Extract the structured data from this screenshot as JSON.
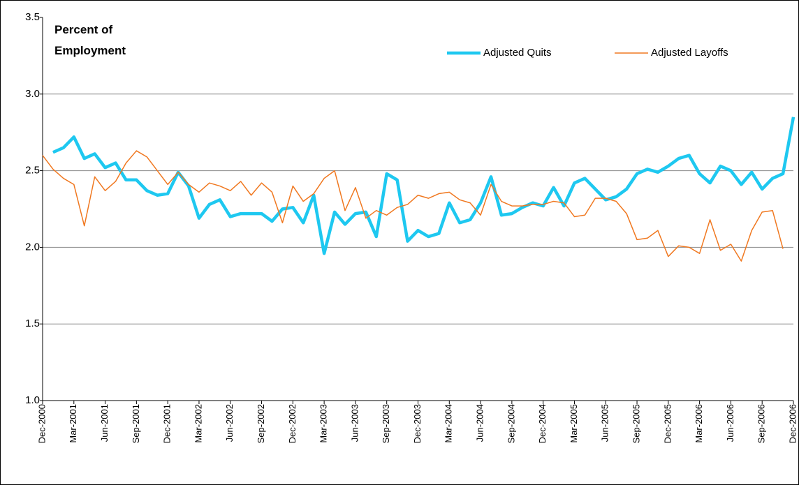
{
  "chart_data": {
    "type": "line",
    "annotation": [
      "Percent of",
      "Employment"
    ],
    "categories": [
      "Dec-2000",
      null,
      null,
      "Mar-2001",
      null,
      null,
      "Jun-2001",
      null,
      null,
      "Sep-2001",
      null,
      null,
      "Dec-2001",
      null,
      null,
      "Mar-2002",
      null,
      null,
      "Jun-2002",
      null,
      null,
      "Sep-2002",
      null,
      null,
      "Dec-2002",
      null,
      null,
      "Mar-2003",
      null,
      null,
      "Jun-2003",
      null,
      null,
      "Sep-2003",
      null,
      null,
      "Dec-2003",
      null,
      null,
      "Mar-2004",
      null,
      null,
      "Jun-2004",
      null,
      null,
      "Sep-2004",
      null,
      null,
      "Dec-2004",
      null,
      null,
      "Mar-2005",
      null,
      null,
      "Jun-2005",
      null,
      null,
      "Sep-2005",
      null,
      null,
      "Dec-2005",
      null,
      null,
      "Mar-2006",
      null,
      null,
      "Jun-2006",
      null,
      null,
      "Sep-2006",
      null,
      null,
      "Dec-2006"
    ],
    "series": [
      {
        "name": "Adjusted Quits",
        "color": "#1ec8f0",
        "width": 4.5,
        "values": [
          null,
          2.62,
          2.65,
          2.72,
          2.58,
          2.61,
          2.52,
          2.55,
          2.44,
          2.44,
          2.37,
          2.34,
          2.35,
          2.49,
          2.4,
          2.19,
          2.28,
          2.31,
          2.2,
          2.22,
          2.22,
          2.22,
          2.17,
          2.25,
          2.26,
          2.16,
          2.34,
          1.96,
          2.23,
          2.15,
          2.22,
          2.23,
          2.07,
          2.48,
          2.44,
          2.04,
          2.11,
          2.07,
          2.09,
          2.29,
          2.16,
          2.18,
          2.29,
          2.46,
          2.21,
          2.22,
          2.26,
          2.29,
          2.27,
          2.39,
          2.27,
          2.42,
          2.45,
          2.38,
          2.31,
          2.33,
          2.38,
          2.48,
          2.51,
          2.49,
          2.53,
          2.58,
          2.6,
          2.48,
          2.42,
          2.53,
          2.5,
          2.41,
          2.49,
          2.38,
          2.45,
          2.48,
          2.85
        ]
      },
      {
        "name": "Adjusted Layoffs",
        "color": "#f07820",
        "width": 1.5,
        "values": [
          2.6,
          2.51,
          2.45,
          2.41,
          2.14,
          2.46,
          2.37,
          2.43,
          2.55,
          2.63,
          2.59,
          2.5,
          2.41,
          2.49,
          2.41,
          2.36,
          2.42,
          2.4,
          2.37,
          2.43,
          2.34,
          2.42,
          2.36,
          2.16,
          2.4,
          2.3,
          2.35,
          2.45,
          2.5,
          2.24,
          2.39,
          2.19,
          2.24,
          2.21,
          2.26,
          2.28,
          2.34,
          2.32,
          2.35,
          2.36,
          2.31,
          2.29,
          2.21,
          2.41,
          2.3,
          2.27,
          2.27,
          2.28,
          2.28,
          2.3,
          2.29,
          2.2,
          2.21,
          2.32,
          2.32,
          2.3,
          2.22,
          2.05,
          2.06,
          2.11,
          1.94,
          2.01,
          2.0,
          1.96,
          2.18,
          1.98,
          2.02,
          1.91,
          2.11,
          2.23,
          2.24,
          1.99,
          null
        ]
      }
    ],
    "ylim": [
      1,
      3.5
    ],
    "yticks": [
      {
        "value": 1,
        "label": "1.0"
      },
      1.5,
      {
        "value": 2,
        "label": "2.0"
      },
      2.5,
      {
        "value": 3,
        "label": "3.0"
      },
      3.5
    ],
    "grid": true,
    "legend": "upper right"
  }
}
